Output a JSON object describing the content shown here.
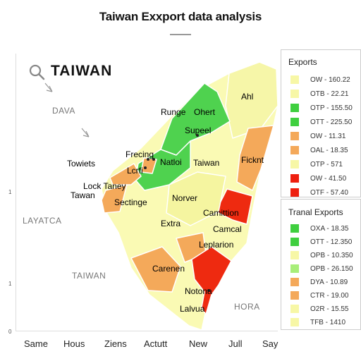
{
  "title": "Taiwan Exxport data analysis",
  "search": {
    "label": "TAIWAN"
  },
  "geo_labels": {
    "dava": "DAVA",
    "layatca": "LAYATCA",
    "taiwan_sea": "TAIWAN",
    "hora": "HORA"
  },
  "axis": {
    "x_ticks": [
      "Same",
      "Hous",
      "Ziens",
      "Actutt",
      "New",
      "Jull",
      "Say"
    ],
    "y_ticks": [
      "1",
      "1",
      "0"
    ]
  },
  "place_labels": {
    "ahl": "Ahl",
    "runge": "Runge",
    "ohert": "Ohert",
    "supeel": "Supeel",
    "frecing": "Frecing",
    "towiets": "Towiets",
    "lcrfi": "Lcrfi",
    "natloi": "Natloi",
    "taiwan": "Taiwan",
    "ficknt": "Ficknt",
    "lock_taney": "Lock Taney",
    "taiwan_west": "Tawan",
    "sectinge": "Sectinge",
    "norver": "Norver",
    "camittion": "Camittion",
    "extra": "Extra",
    "camcal": "Camcal",
    "leplarion": "Leplarion",
    "carenen": "Carenen",
    "notona": "Notona",
    "lalvua": "Lalvua"
  },
  "colors": {
    "pale_yellow": "#fafab4",
    "light_yellow": "#f4f49a",
    "green": "#4fd24f",
    "orange": "#f4a95a",
    "red": "#ee2a10"
  },
  "legend_exports": {
    "title": "Exports",
    "items": [
      {
        "color": "#f7f7a6",
        "label": "OW - 160.22"
      },
      {
        "color": "#f7f7a6",
        "label": "OTB - 22.21"
      },
      {
        "color": "#3fcf3f",
        "label": "OTP - 155.50"
      },
      {
        "color": "#3fcf3f",
        "label": "OTT - 225.50"
      },
      {
        "color": "#f4a95a",
        "label": "OW - 11.31"
      },
      {
        "color": "#f4a95a",
        "label": "OAL - 18.35"
      },
      {
        "color": "#f7f7a6",
        "label": "OTP - 571"
      },
      {
        "color": "#ee1f0f",
        "label": "OW - 41.50"
      },
      {
        "color": "#ee1f0f",
        "label": "OTF - 57.40"
      }
    ]
  },
  "legend_transl": {
    "title": "Tranal Exports",
    "items": [
      {
        "color": "#3fcf3f",
        "label": "OXA - 18.35"
      },
      {
        "color": "#3fcf3f",
        "label": "OTT - 12.350"
      },
      {
        "color": "#f7f7a6",
        "label": "OPB - 10.350"
      },
      {
        "color": "#a8ee7a",
        "label": "OPB - 26.150"
      },
      {
        "color": "#f4a95a",
        "label": "DYA - 10.89"
      },
      {
        "color": "#f4a95a",
        "label": "CTR - 19.00"
      },
      {
        "color": "#f7f7a6",
        "label": "O2R - 15.55"
      },
      {
        "color": "#f7f7a6",
        "label": "TFB - 1410"
      }
    ]
  }
}
